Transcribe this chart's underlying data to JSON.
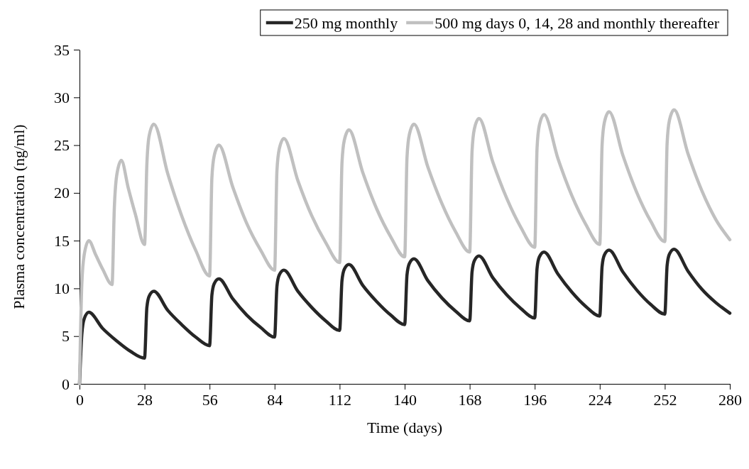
{
  "chart_data": {
    "type": "line",
    "xlabel": "Time (days)",
    "ylabel": "Plasma concentration (ng/ml)",
    "xlim": [
      0,
      280
    ],
    "xticks": [
      0,
      28,
      56,
      84,
      112,
      140,
      168,
      196,
      224,
      252,
      280
    ],
    "ylim": [
      0,
      35
    ],
    "yticks": [
      0,
      5,
      10,
      15,
      20,
      25,
      30,
      35
    ],
    "grid": false,
    "legend": "top",
    "marker": "none",
    "line_style": "solid",
    "series": [
      {
        "name": "250 mg monthly",
        "color": "#262626",
        "x": [
          0,
          1,
          2,
          4,
          10,
          16,
          22,
          28,
          29,
          30,
          32,
          38,
          44,
          50,
          56,
          57,
          58,
          60,
          66,
          72,
          78,
          84,
          85,
          86,
          88,
          94,
          100,
          106,
          112,
          113,
          114,
          116,
          122,
          128,
          134,
          140,
          141,
          142,
          144,
          150,
          156,
          162,
          168,
          169,
          170,
          172,
          178,
          184,
          190,
          196,
          197,
          198,
          200,
          206,
          212,
          218,
          224,
          225,
          226,
          228,
          234,
          240,
          246,
          252,
          253,
          254,
          256,
          262,
          268,
          274,
          280
        ],
        "values": [
          0,
          5.2,
          6.8,
          7.5,
          5.8,
          4.5,
          3.4,
          2.7,
          8.0,
          9.2,
          9.7,
          7.7,
          6.2,
          4.9,
          4.0,
          9.3,
          10.5,
          11.0,
          8.9,
          7.2,
          5.9,
          4.9,
          10.2,
          11.4,
          11.9,
          9.7,
          8.0,
          6.6,
          5.6,
          10.8,
          12.0,
          12.5,
          10.3,
          8.6,
          7.2,
          6.2,
          11.4,
          12.6,
          13.1,
          10.8,
          9.0,
          7.6,
          6.6,
          11.7,
          12.9,
          13.4,
          11.1,
          9.3,
          7.9,
          6.9,
          12.1,
          13.3,
          13.8,
          11.5,
          9.6,
          8.1,
          7.1,
          12.3,
          13.5,
          14.0,
          11.7,
          9.8,
          8.3,
          7.3,
          12.4,
          13.6,
          14.1,
          11.8,
          9.9,
          8.5,
          7.4
        ]
      },
      {
        "name": "500 mg days 0, 14, 28 and monthly thereafter",
        "color": "#c0c0c0",
        "x": [
          0,
          1,
          2,
          4,
          7,
          10,
          14,
          15,
          16,
          18,
          21,
          24,
          28,
          29,
          30,
          32,
          38,
          44,
          50,
          56,
          57,
          58,
          60,
          66,
          72,
          78,
          84,
          85,
          86,
          88,
          94,
          100,
          106,
          112,
          113,
          114,
          116,
          122,
          128,
          134,
          140,
          141,
          142,
          144,
          150,
          156,
          162,
          168,
          169,
          170,
          172,
          178,
          184,
          190,
          196,
          197,
          198,
          200,
          206,
          212,
          218,
          224,
          225,
          226,
          228,
          234,
          240,
          246,
          252,
          253,
          254,
          256,
          262,
          268,
          274,
          280
        ],
        "values": [
          0,
          10.5,
          13.5,
          15.0,
          13.5,
          12.0,
          10.4,
          18.5,
          21.8,
          23.4,
          20.5,
          17.8,
          14.6,
          23.0,
          26.0,
          27.2,
          22.0,
          17.6,
          14.0,
          11.3,
          21.6,
          23.9,
          25.0,
          20.6,
          16.8,
          14.0,
          11.9,
          22.3,
          24.6,
          25.7,
          21.3,
          17.6,
          14.8,
          12.7,
          23.1,
          25.5,
          26.6,
          22.1,
          18.3,
          15.4,
          13.3,
          23.7,
          26.1,
          27.2,
          22.7,
          18.9,
          15.9,
          13.8,
          24.3,
          26.7,
          27.8,
          23.2,
          19.4,
          16.4,
          14.3,
          24.7,
          27.1,
          28.2,
          23.6,
          19.7,
          16.7,
          14.6,
          25.0,
          27.4,
          28.5,
          23.9,
          20.0,
          17.0,
          14.9,
          25.2,
          27.6,
          28.7,
          24.1,
          20.2,
          17.2,
          15.1
        ]
      }
    ]
  }
}
